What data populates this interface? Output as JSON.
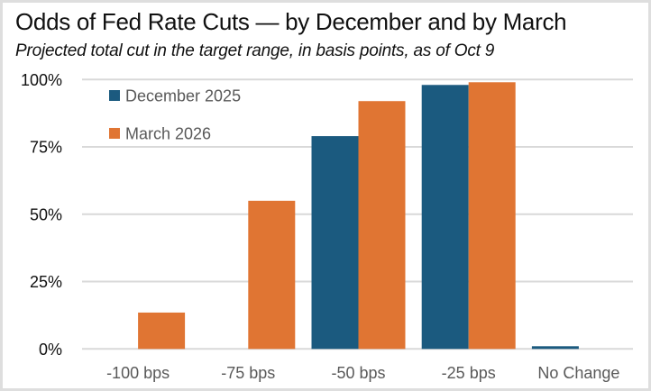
{
  "chart_data": {
    "type": "bar",
    "title": "Odds of Fed Rate Cuts — by December and by March",
    "subtitle": "Projected total cut in the target range, in basis points, as of Oct 9",
    "xlabel": "",
    "ylabel": "",
    "categories": [
      "-100 bps",
      "-75 bps",
      "-50 bps",
      "-25 bps",
      "No Change"
    ],
    "series": [
      {
        "name": "December 2025",
        "color": "#1b5a7f",
        "values": [
          0,
          0,
          79,
          98,
          1
        ]
      },
      {
        "name": "March 2026",
        "color": "#e07533",
        "values": [
          13.5,
          55,
          92,
          99,
          0
        ]
      }
    ],
    "ylim": [
      0,
      100
    ],
    "yticks": [
      0,
      25,
      50,
      75,
      100
    ],
    "ytick_labels": [
      "0%",
      "25%",
      "50%",
      "75%",
      "100%"
    ],
    "grid": true,
    "legend_position": "top-left"
  }
}
